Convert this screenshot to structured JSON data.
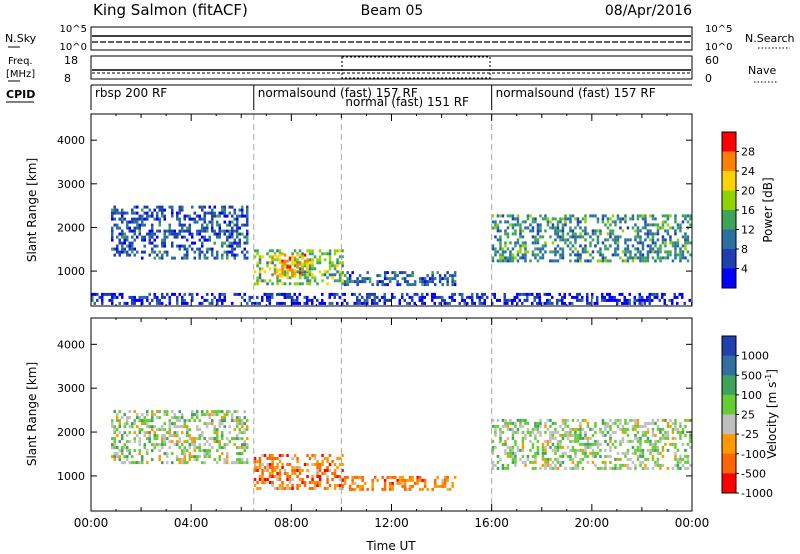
{
  "header": {
    "station": "King Salmon (fitACF)",
    "beam": "Beam 05",
    "date": "08/Apr/2016"
  },
  "top_panels": {
    "nsky_label": "N.Sky",
    "nsky_ticks": [
      "10^5",
      "10^0"
    ],
    "nsearch_label": "N.Search",
    "nsearch_ticks": [
      "10^5",
      "10^0"
    ],
    "freq_label_line1": "Freq.",
    "freq_label_line2": "[MHz]",
    "freq_ticks": [
      "18",
      "8"
    ],
    "nave_label": "Nave",
    "nave_ticks": [
      "60",
      "0"
    ],
    "cpid_label": "CPID",
    "cpid_segments": [
      {
        "label": "rbsp 200 RF",
        "start_hour": 0.0,
        "end_hour": 6.5
      },
      {
        "label": "normalsound (fast) 157 RF",
        "start_hour": 6.5,
        "end_hour": 16.0
      },
      {
        "label": "normal (fast) 151 RF",
        "start_hour": 10.0,
        "end_hour": 16.0
      },
      {
        "label": "normalsound (fast) 157 RF",
        "start_hour": 16.0,
        "end_hour": 24.0
      }
    ]
  },
  "chart_data": [
    {
      "type": "heatmap",
      "title": "Power",
      "ylabel": "Slant Range [km]",
      "xlabel": "",
      "xlim_hours": [
        0,
        24
      ],
      "ylim": [
        200,
        4600
      ],
      "yticks": [
        "4000",
        "3000",
        "2000",
        "1000"
      ],
      "colorbar_label": "Power [dB]",
      "colorbar_ticks": [
        "28",
        "24",
        "20",
        "16",
        "12",
        "8",
        "4"
      ],
      "colorbar_colors": [
        "#ff0000",
        "#ff7f00",
        "#ffd400",
        "#8fd400",
        "#3fa35a",
        "#2a6fa0",
        "#1f3fb0",
        "#0000ff"
      ],
      "echo_regions": [
        {
          "x0": 0.8,
          "x1": 6.2,
          "y0": 1300,
          "y1": 2500,
          "level": 8
        },
        {
          "x0": 6.5,
          "x1": 10.0,
          "y0": 700,
          "y1": 1500,
          "level": 16
        },
        {
          "x0": 7.2,
          "x1": 8.6,
          "y0": 900,
          "y1": 1400,
          "level": 24
        },
        {
          "x0": 10.0,
          "x1": 14.5,
          "y0": 700,
          "y1": 1000,
          "level": 8
        },
        {
          "x0": 16.0,
          "x1": 24.0,
          "y0": 1200,
          "y1": 2300,
          "level": 12
        },
        {
          "x0": 0.0,
          "x1": 24.0,
          "y0": 250,
          "y1": 500,
          "level": 4
        }
      ]
    },
    {
      "type": "heatmap",
      "title": "Velocity",
      "ylabel": "Slant Range [km]",
      "xlabel": "Time UT",
      "xlim_hours": [
        0,
        24
      ],
      "ylim": [
        200,
        4600
      ],
      "yticks": [
        "4000",
        "3000",
        "2000",
        "1000"
      ],
      "xticks": [
        "00:00",
        "04:00",
        "08:00",
        "12:00",
        "16:00",
        "20:00",
        "00:00"
      ],
      "colorbar_label": "Velocity [m s",
      "colorbar_label_sup": "-1",
      "colorbar_label_end": "]",
      "colorbar_ticks": [
        "1000",
        "500",
        "100",
        "25",
        "-25",
        "-100",
        "-500",
        "-1000"
      ],
      "colorbar_colors": [
        "#2040b0",
        "#3070a0",
        "#3fa35a",
        "#66cc33",
        "#bfbfbf",
        "#ff9900",
        "#ff6600",
        "#ff0000"
      ],
      "echo_regions": [
        {
          "x0": 0.8,
          "x1": 6.2,
          "y0": 1300,
          "y1": 2500,
          "level": 25
        },
        {
          "x0": 6.5,
          "x1": 10.0,
          "y0": 700,
          "y1": 1500,
          "level": -100
        },
        {
          "x0": 10.0,
          "x1": 14.5,
          "y0": 700,
          "y1": 1000,
          "level": -100
        },
        {
          "x0": 16.0,
          "x1": 24.0,
          "y0": 1200,
          "y1": 2300,
          "level": 25
        }
      ]
    }
  ]
}
